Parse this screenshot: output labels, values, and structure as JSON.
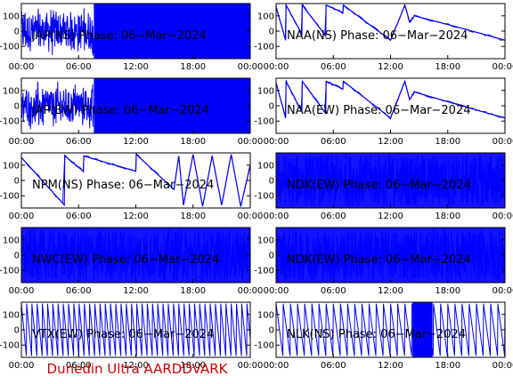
{
  "chart_data": [
    {
      "type": "line",
      "title": "JAP(NS) Phase: 06−Mar−2024",
      "x_ticks": [
        "00:00",
        "06:00",
        "12:00",
        "18:00",
        "00:00"
      ],
      "y_ticks": [
        100,
        0,
        -100
      ],
      "ylim": [
        -180,
        180
      ],
      "xlim_hours": [
        0,
        24
      ],
      "series_color": "#0000ff",
      "pattern": "dense",
      "x": [
        0,
        1,
        2,
        3,
        4,
        5,
        6,
        7,
        8,
        12,
        18,
        24
      ],
      "y": [
        0,
        150,
        -150,
        120,
        -120,
        100,
        -80,
        120,
        -160,
        0,
        0,
        0
      ]
    },
    {
      "type": "line",
      "title": "NAA(NS) Phase: 06−Mar−2024",
      "x_ticks": [
        "00:00",
        "06:00",
        "12:00",
        "18:00",
        "00:00"
      ],
      "y_ticks": [
        100,
        0,
        -100
      ],
      "ylim": [
        -180,
        180
      ],
      "xlim_hours": [
        0,
        24
      ],
      "series_color": "#0000ff",
      "pattern": "line",
      "x": [
        0,
        1.0,
        1.05,
        2.7,
        2.75,
        5.2,
        5.25,
        7.0,
        7.05,
        12.0,
        13.5,
        14.0,
        14.5,
        20.0,
        24.0
      ],
      "y": [
        160,
        -60,
        170,
        -20,
        170,
        -30,
        170,
        120,
        170,
        -60,
        170,
        60,
        100,
        10,
        -60
      ]
    },
    {
      "type": "line",
      "title": "JAP(EW) Phase: 06−Mar−2024",
      "x_ticks": [
        "00:00",
        "06:00",
        "12:00",
        "18:00",
        "00:00"
      ],
      "y_ticks": [
        100,
        0,
        -100
      ],
      "ylim": [
        -180,
        180
      ],
      "xlim_hours": [
        0,
        24
      ],
      "series_color": "#0000ff",
      "pattern": "dense",
      "x": [
        0,
        1,
        2,
        3,
        4,
        5,
        6,
        7,
        8,
        12,
        18,
        24
      ],
      "y": [
        80,
        120,
        -100,
        100,
        -120,
        90,
        -60,
        140,
        -170,
        0,
        0,
        0
      ]
    },
    {
      "type": "line",
      "title": "NAA(EW) Phase: 06−Mar−2024",
      "x_ticks": [
        "00:00",
        "06:00",
        "12:00",
        "18:00",
        "00:00"
      ],
      "y_ticks": [
        100,
        0,
        -100
      ],
      "ylim": [
        -180,
        180
      ],
      "xlim_hours": [
        0,
        24
      ],
      "series_color": "#0000ff",
      "pattern": "line",
      "x": [
        0,
        1.0,
        1.05,
        2.7,
        2.75,
        5.2,
        5.25,
        7.0,
        7.05,
        12.0,
        13.5,
        14.0,
        14.5,
        20.0,
        24.0
      ],
      "y": [
        150,
        -80,
        160,
        -40,
        160,
        -50,
        160,
        110,
        160,
        -80,
        160,
        40,
        90,
        -10,
        -80
      ]
    },
    {
      "type": "line",
      "title": "NPM(NS) Phase: 06−Mar−2024",
      "x_ticks": [
        "00:00",
        "06:00",
        "12:00",
        "18:00",
        "00:00"
      ],
      "y_ticks": [
        100,
        0,
        -100
      ],
      "ylim": [
        -180,
        180
      ],
      "xlim_hours": [
        0,
        24
      ],
      "series_color": "#0000ff",
      "pattern": "line",
      "x": [
        0,
        4.5,
        4.55,
        6.5,
        6.55,
        12.0,
        12.05,
        16.0,
        16.5,
        17.0,
        18.0,
        19.0,
        20.0,
        21.0,
        22.0,
        23.0,
        24.0
      ],
      "y": [
        150,
        -160,
        160,
        60,
        160,
        60,
        170,
        -60,
        160,
        -160,
        170,
        -170,
        160,
        -160,
        170,
        -170,
        100
      ]
    },
    {
      "type": "line",
      "title": "NDK(EW) Phase: 06−Mar−2024",
      "x_ticks": [
        "00:00",
        "06:00",
        "12:00",
        "18:00",
        "00:00"
      ],
      "y_ticks": [
        100,
        0,
        -100
      ],
      "ylim": [
        -180,
        180
      ],
      "xlim_hours": [
        0,
        24
      ],
      "series_color": "#0000ff",
      "pattern": "dense",
      "x": [
        0,
        6,
        12,
        18,
        24
      ],
      "y": [
        0,
        0,
        0,
        0,
        0
      ]
    },
    {
      "type": "line",
      "title": "NWC(EW) Phase: 06−Mar−2024",
      "x_ticks": [
        "00:00",
        "06:00",
        "12:00",
        "18:00",
        "00:00"
      ],
      "y_ticks": [
        100,
        0,
        -100
      ],
      "ylim": [
        -180,
        180
      ],
      "xlim_hours": [
        0,
        24
      ],
      "series_color": "#0000ff",
      "pattern": "dense",
      "x": [
        0,
        6,
        12,
        18,
        24
      ],
      "y": [
        0,
        0,
        0,
        0,
        0
      ]
    },
    {
      "type": "line",
      "title": "NDK(EW) Phase: 06−Mar−2024",
      "x_ticks": [
        "00:00",
        "06:00",
        "12:00",
        "18:00",
        "00:00"
      ],
      "y_ticks": [
        100,
        0,
        -100
      ],
      "ylim": [
        -180,
        180
      ],
      "xlim_hours": [
        0,
        24
      ],
      "series_color": "#0000ff",
      "pattern": "dense",
      "x": [
        0,
        6,
        12,
        18,
        24
      ],
      "y": [
        0,
        0,
        0,
        0,
        0
      ]
    },
    {
      "type": "line",
      "title": "VTX(EW) Phase: 06−Mar−2024",
      "x_ticks": [
        "00:00",
        "06:00",
        "12:00",
        "18:00",
        "00:00"
      ],
      "y_ticks": [
        100,
        0,
        -100
      ],
      "ylim": [
        -180,
        180
      ],
      "xlim_hours": [
        0,
        24
      ],
      "series_color": "#0000ff",
      "pattern": "sawtooth",
      "x": [
        0,
        6,
        12,
        18,
        24
      ],
      "y": [
        170,
        -170,
        170,
        -170,
        170
      ]
    },
    {
      "type": "line",
      "title": "NLK(NS) Phase: 06−Mar−2024",
      "x_ticks": [
        "00:00",
        "06:00",
        "12:00",
        "18:00",
        "00:00"
      ],
      "y_ticks": [
        100,
        0,
        -100
      ],
      "ylim": [
        -180,
        180
      ],
      "xlim_hours": [
        0,
        24
      ],
      "series_color": "#0000ff",
      "pattern": "sawtooth",
      "x": [
        0,
        6,
        12,
        15,
        18,
        24
      ],
      "y": [
        150,
        -170,
        150,
        -170,
        150,
        -170
      ]
    }
  ],
  "footer": {
    "text": "Dunedin Ultra AARDDVARK",
    "color": "#cc0000"
  },
  "colors": {
    "axis": "#000000",
    "series": "#0000ff",
    "background": "#ffffff"
  }
}
